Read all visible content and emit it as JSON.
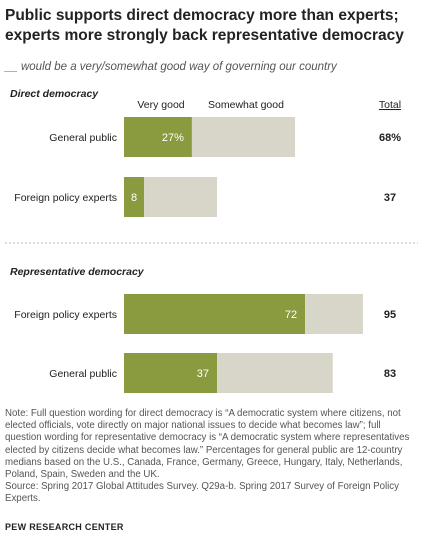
{
  "header": {
    "title": "Public supports direct democracy more than experts;\nexperts more strongly back representative democracy",
    "subtitle": "__ would be a very/somewhat good way of governing our country"
  },
  "colors": {
    "very_good": "#8a9a3f",
    "somewhat_good": "#d8d6c8",
    "divider": "#bbbbbb"
  },
  "chart_data": {
    "type": "bar",
    "stacked": true,
    "orientation": "horizontal",
    "legend": [
      "Very good",
      "Somewhat good"
    ],
    "total_header": "Total",
    "xlim": [
      0,
      100
    ],
    "groups": [
      {
        "name": "Direct democracy",
        "rows": [
          {
            "label": "General public",
            "very_good": 27,
            "very_good_label": "27%",
            "somewhat_good": 41,
            "total": "68%"
          },
          {
            "label": "Foreign policy experts",
            "very_good": 8,
            "very_good_label": "8",
            "somewhat_good": 29,
            "total": "37"
          }
        ]
      },
      {
        "name": "Representative democracy",
        "rows": [
          {
            "label": "Foreign policy experts",
            "very_good": 72,
            "very_good_label": "72",
            "somewhat_good": 23,
            "total": "95"
          },
          {
            "label": "General public",
            "very_good": 37,
            "very_good_label": "37",
            "somewhat_good": 46,
            "total": "83"
          }
        ]
      }
    ]
  },
  "notes": {
    "note": "Note: Full question wording for direct democracy is “A democratic system where citizens, not elected officials, vote directly on major national issues to decide what becomes law”; full question wording for representative democracy is “A democratic system where representatives elected by citizens decide what becomes law.” Percentages for general public are 12-country medians based on the U.S., Canada, France, Germany, Greece, Hungary, Italy, Netherlands, Poland, Spain, Sweden and the UK.",
    "source": "Source: Spring 2017 Global Attitudes Survey. Q29a-b. Spring 2017 Survey of Foreign Policy Experts."
  },
  "brand": "PEW RESEARCH CENTER"
}
